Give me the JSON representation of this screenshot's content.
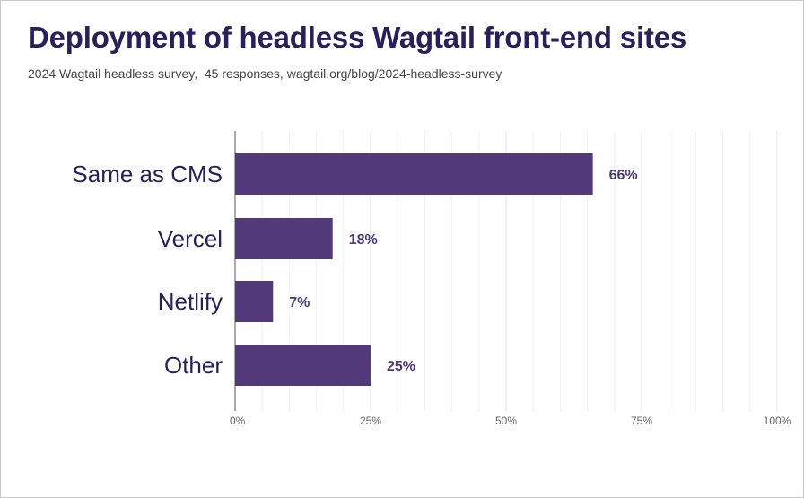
{
  "chart_data": {
    "type": "bar",
    "orientation": "horizontal",
    "title": "Deployment of headless Wagtail front-end sites",
    "subtitle": "2024 Wagtail headless survey,  45 responses, wagtail.org/blog/2024-headless-survey",
    "categories": [
      "Same as CMS",
      "Vercel",
      "Netlify",
      "Other"
    ],
    "values": [
      66,
      18,
      7,
      25
    ],
    "value_labels": [
      "66%",
      "18%",
      "7%",
      "25%"
    ],
    "xlim": [
      0,
      100
    ],
    "xticks": [
      0,
      25,
      50,
      75,
      100
    ],
    "xtick_labels": [
      "0%",
      "25%",
      "50%",
      "75%",
      "100%"
    ],
    "grid": true,
    "bar_color": "#523a7a"
  }
}
